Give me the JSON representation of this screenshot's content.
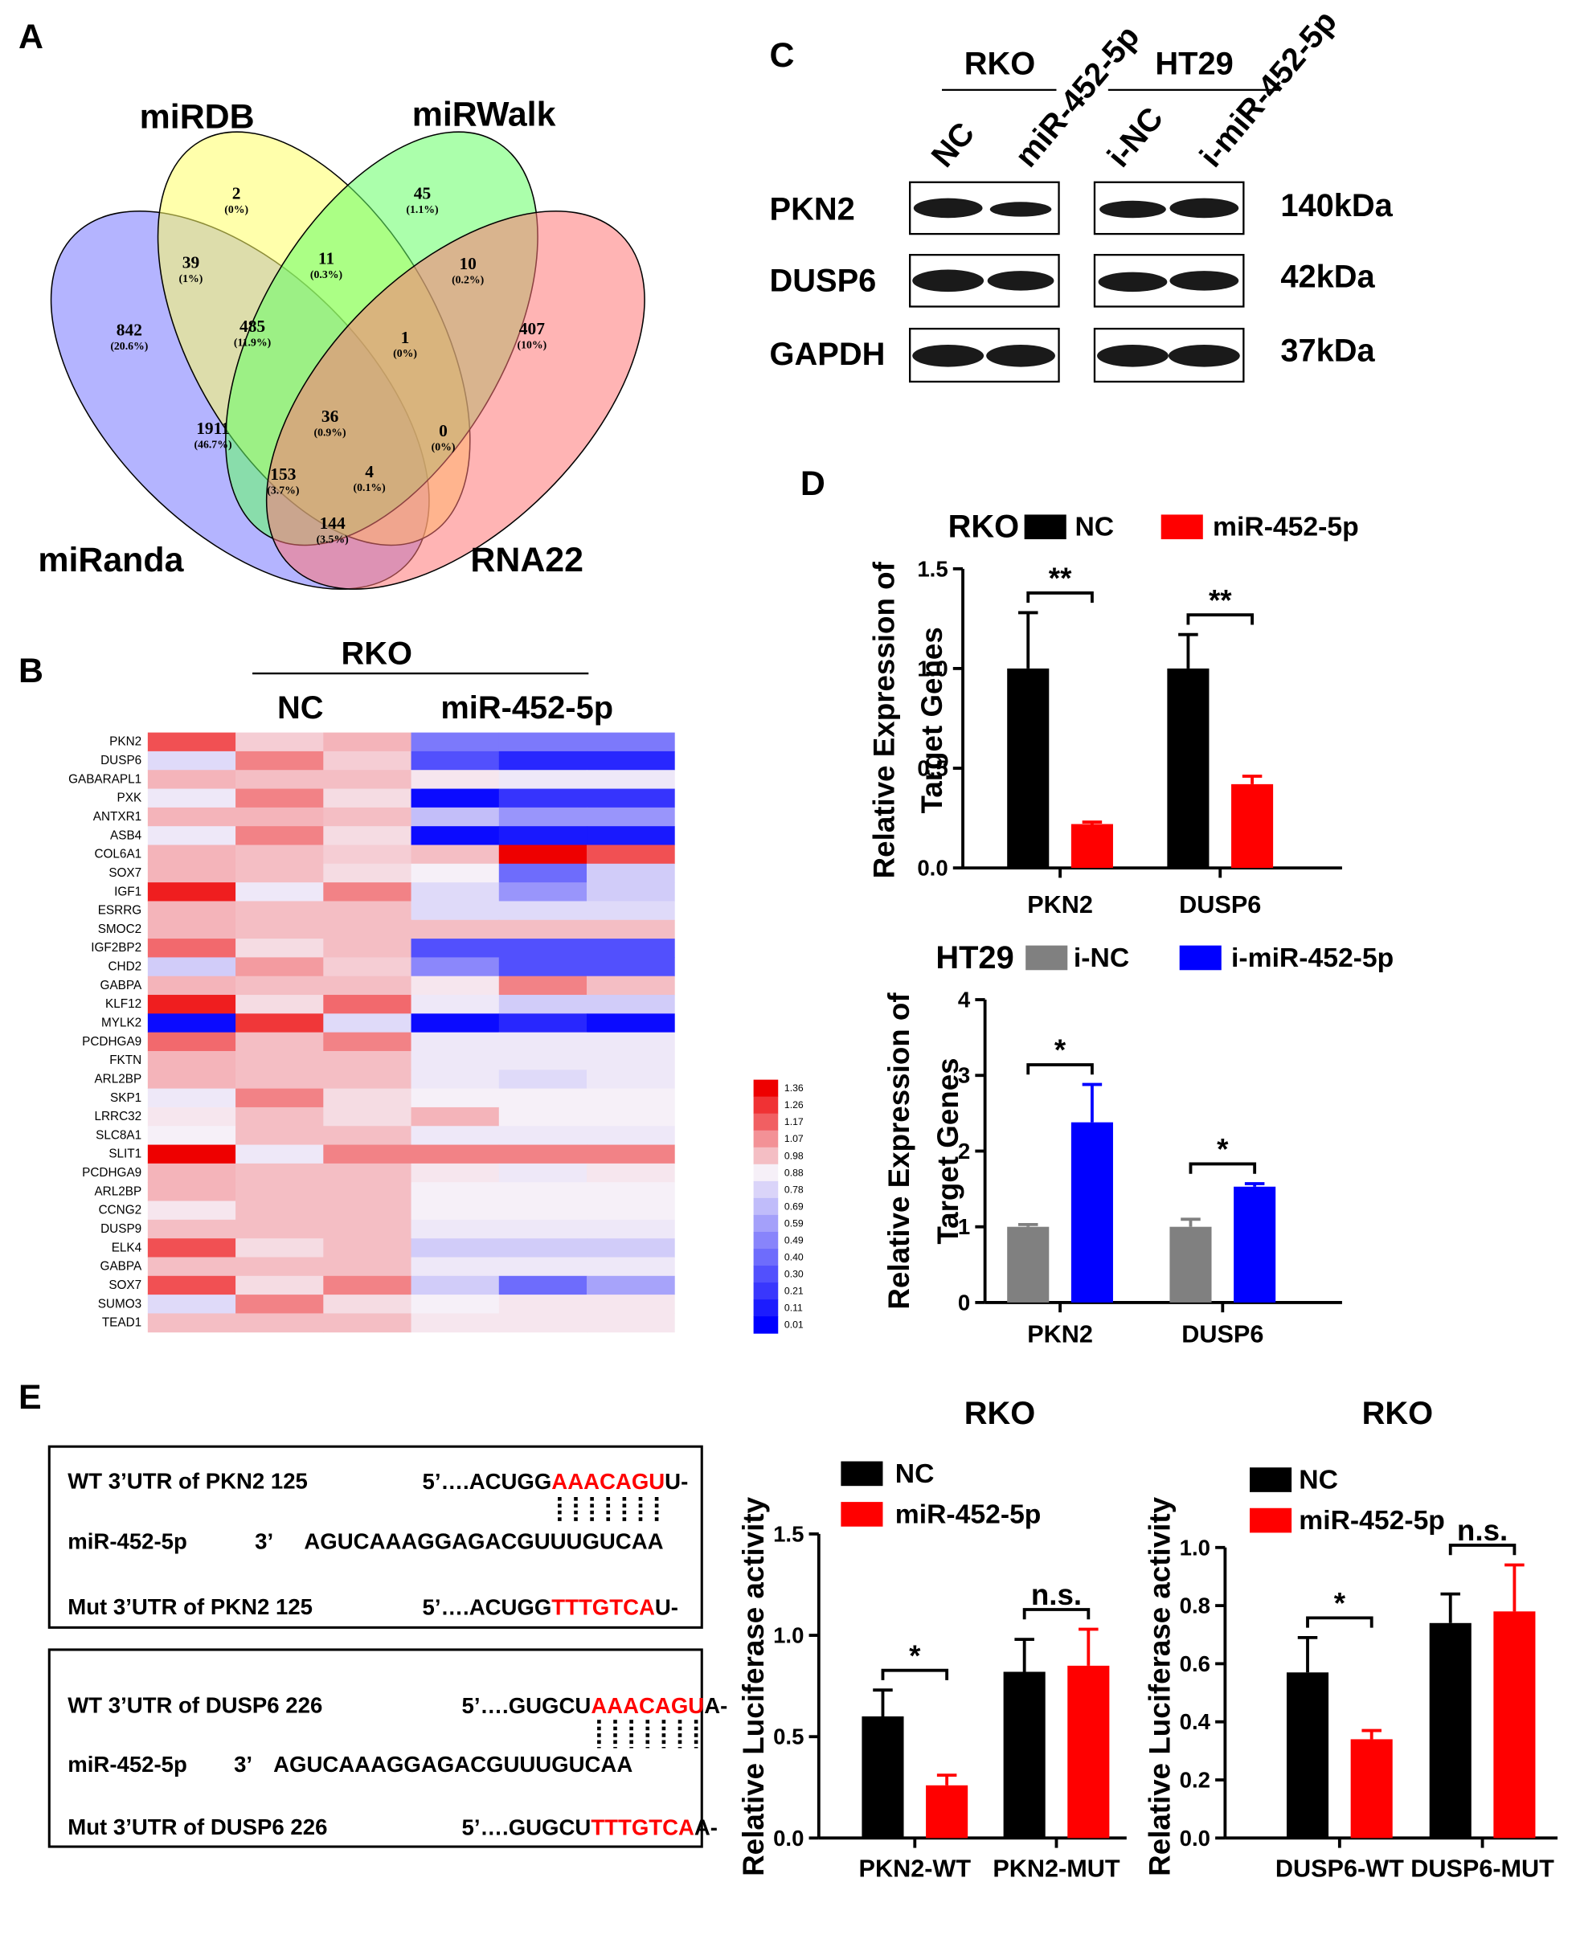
{
  "panel_labels": [
    "A",
    "B",
    "C",
    "D",
    "E"
  ],
  "venn": {
    "sets": [
      "miRDB",
      "miRWalk",
      "miRanda",
      "RNA22"
    ],
    "colors": [
      "#ffff66",
      "#66ff66",
      "#7777ff",
      "#ff7777"
    ],
    "regions": [
      {
        "count": "2",
        "percent": "(0%)"
      },
      {
        "count": "45",
        "percent": "(1.1%)"
      },
      {
        "count": "39",
        "percent": "(1%)"
      },
      {
        "count": "11",
        "percent": "(0.3%)"
      },
      {
        "count": "10",
        "percent": "(0.2%)"
      },
      {
        "count": "842",
        "percent": "(20.6%)"
      },
      {
        "count": "485",
        "percent": "(11.9%)"
      },
      {
        "count": "1",
        "percent": "(0%)"
      },
      {
        "count": "407",
        "percent": "(10%)"
      },
      {
        "count": "36",
        "percent": "(0.9%)"
      },
      {
        "count": "1911",
        "percent": "(46.7%)"
      },
      {
        "count": "0",
        "percent": "(0%)"
      },
      {
        "count": "153",
        "percent": "(3.7%)"
      },
      {
        "count": "4",
        "percent": "(0.1%)"
      },
      {
        "count": "144",
        "percent": "(3.5%)"
      }
    ]
  },
  "heatmap": {
    "group": "RKO",
    "column_groups": [
      "NC",
      "miR-452-5p"
    ],
    "genes": [
      "PKN2",
      "DUSP6",
      "GABARAPL1",
      "PXK",
      "ANTXR1",
      "ASB4",
      "COL6A1",
      "SOX7",
      "IGF1",
      "ESRRG",
      "SMOC2",
      "IGF2BP2",
      "CHD2",
      "GABPA",
      "KLF12",
      "MYLK2",
      "PCDHGA9",
      "FKTN",
      "ARL2BP",
      "SKP1",
      "LRRC32",
      "SLC8A1",
      "SLIT1",
      "PCDHGA9",
      "ARL2BP",
      "CCNG2",
      "DUSP9",
      "ELK4",
      "GABPA",
      "SOX7",
      "SUMO3",
      "TEAD1"
    ],
    "values": [
      [
        1.2,
        0.95,
        1.0,
        0.45,
        0.45,
        0.45
      ],
      [
        0.8,
        1.1,
        0.95,
        0.3,
        0.15,
        0.15
      ],
      [
        1.0,
        0.98,
        0.98,
        0.9,
        0.85,
        0.85
      ],
      [
        0.85,
        1.1,
        0.92,
        0.05,
        0.2,
        0.2
      ],
      [
        1.0,
        1.0,
        0.98,
        0.7,
        0.55,
        0.55
      ],
      [
        0.85,
        1.1,
        0.92,
        0.05,
        0.1,
        0.1
      ],
      [
        1.0,
        0.98,
        0.95,
        0.98,
        1.36,
        1.2
      ],
      [
        1.0,
        0.98,
        0.92,
        0.88,
        0.4,
        0.75
      ],
      [
        1.3,
        0.85,
        1.1,
        0.8,
        0.55,
        0.75
      ],
      [
        1.0,
        0.98,
        0.98,
        0.8,
        0.8,
        0.8
      ],
      [
        1.0,
        0.98,
        0.98,
        0.98,
        0.98,
        0.98
      ],
      [
        1.15,
        0.92,
        0.98,
        0.3,
        0.3,
        0.3
      ],
      [
        0.75,
        1.05,
        0.95,
        0.5,
        0.3,
        0.3
      ],
      [
        1.0,
        0.98,
        0.98,
        0.9,
        1.1,
        0.98
      ],
      [
        1.3,
        0.92,
        1.15,
        0.85,
        0.75,
        0.75
      ],
      [
        0.05,
        1.25,
        0.8,
        0.05,
        0.15,
        0.05
      ],
      [
        1.15,
        0.98,
        1.1,
        0.85,
        0.85,
        0.85
      ],
      [
        1.0,
        0.98,
        0.98,
        0.85,
        0.85,
        0.85
      ],
      [
        1.0,
        0.98,
        0.98,
        0.85,
        0.8,
        0.85
      ],
      [
        0.85,
        1.1,
        0.92,
        0.88,
        0.88,
        0.88
      ],
      [
        0.9,
        0.98,
        0.92,
        1.0,
        0.88,
        0.88
      ],
      [
        0.88,
        0.98,
        0.98,
        0.85,
        0.85,
        0.85
      ],
      [
        1.36,
        0.85,
        1.1,
        1.1,
        1.1,
        1.1
      ],
      [
        1.0,
        0.98,
        0.98,
        0.9,
        0.85,
        0.9
      ],
      [
        1.0,
        0.98,
        0.98,
        0.88,
        0.88,
        0.88
      ],
      [
        0.9,
        0.98,
        0.98,
        0.88,
        0.88,
        0.88
      ],
      [
        0.98,
        0.98,
        0.98,
        0.85,
        0.85,
        0.85
      ],
      [
        1.2,
        0.92,
        0.98,
        0.75,
        0.75,
        0.75
      ],
      [
        0.98,
        0.98,
        0.98,
        0.85,
        0.85,
        0.85
      ],
      [
        1.2,
        0.92,
        1.1,
        0.75,
        0.4,
        0.6
      ],
      [
        0.8,
        1.1,
        0.92,
        0.88,
        0.9,
        0.9
      ],
      [
        0.98,
        0.98,
        0.98,
        0.9,
        0.9,
        0.9
      ]
    ],
    "colorbar_ticks": [
      1.36,
      1.26,
      1.17,
      1.07,
      0.98,
      0.88,
      0.78,
      0.69,
      0.59,
      0.49,
      {
        "value": 0.4,
        "label": "0.40"
      },
      {
        "value": 0.3,
        "label": "0.30"
      },
      0.21,
      0.11,
      0.01
    ],
    "colors": [
      "#0000ff",
      "#f6f0f8",
      "#ee0000"
    ]
  },
  "blot": {
    "cell_lines": [
      "RKO",
      "HT29"
    ],
    "lanes": [
      "NC",
      "miR-452-5p",
      "i-NC",
      "i-miR-452-5p"
    ],
    "proteins": [
      "PKN2",
      "DUSP6",
      "GAPDH"
    ],
    "sizes": [
      "140kDa",
      "42kDa",
      "37kDa"
    ]
  },
  "sequences": [
    {
      "wt": {
        "label": "WT 3’UTR of PKN2  125",
        "prefix": "5’….ACUGG",
        "site": "AAACAGU",
        "suffix": "U-"
      },
      "mirna": {
        "label": "miR-452-5p",
        "end": "3’",
        "seq": "AGUCAAAGGAGACGUUUGUCAA"
      },
      "mut": {
        "label": "Mut 3’UTR of PKN2 125",
        "prefix": "5’….ACUGG",
        "site": "TTTGTCA",
        "suffix": "U-"
      }
    },
    {
      "wt": {
        "label": "WT 3’UTR of DUSP6 226",
        "prefix": "5’….GUGCU",
        "site": "AAACAGU",
        "suffix": "A-"
      },
      "mirna": {
        "label": "miR-452-5p",
        "end": "3’",
        "seq": "AGUCAAAGGAGACGUUUGUCAA"
      },
      "mut": {
        "label": "Mut 3’UTR of DUSP6 226",
        "prefix": "5’….GUGCU",
        "site": "TTTGTCA",
        "suffix": "A-"
      }
    }
  ],
  "chart_data": [
    {
      "type": "bar",
      "title": "RKO",
      "y_label": [
        "Relative Expression of",
        "Target Genes"
      ],
      "categories": [
        "PKN2",
        "DUSP6"
      ],
      "series": [
        {
          "name": "NC",
          "color": "#000000",
          "values": [
            1.0,
            1.0
          ],
          "errors": [
            0.28,
            0.17
          ]
        },
        {
          "name": "miR-452-5p",
          "color": "#ff0000",
          "values": [
            0.22,
            0.42
          ],
          "errors": [
            0.01,
            0.04
          ]
        }
      ],
      "ylim": [
        0,
        1.5
      ],
      "yticks": [
        {
          "value": 0,
          "label": "0.0"
        },
        0.5,
        {
          "value": 1,
          "label": "1.0"
        },
        1.5
      ],
      "significance": [
        "**",
        "**"
      ]
    },
    {
      "type": "bar",
      "title": "HT29",
      "y_label": [
        "Relative Expression of",
        "Target Genes"
      ],
      "categories": [
        "PKN2",
        "DUSP6"
      ],
      "series": [
        {
          "name": "i-NC",
          "color": "#808080",
          "values": [
            1.0,
            1.0
          ],
          "errors": [
            0.03,
            0.1
          ]
        },
        {
          "name": "i-miR-452-5p",
          "color": "#0000ff",
          "values": [
            2.38,
            1.53
          ],
          "errors": [
            0.5,
            0.04
          ]
        }
      ],
      "ylim": [
        0,
        4
      ],
      "yticks": [
        0,
        1,
        2,
        3,
        4
      ],
      "significance": [
        "*",
        "*"
      ]
    },
    {
      "type": "bar",
      "title": "RKO",
      "y_label": [
        "Relative Luciferase activity"
      ],
      "categories": [
        "PKN2-WT",
        "PKN2-MUT"
      ],
      "series": [
        {
          "name": "NC",
          "color": "#000000",
          "values": [
            0.6,
            0.82
          ],
          "errors": [
            0.13,
            0.16
          ]
        },
        {
          "name": "miR-452-5p",
          "color": "#ff0000",
          "values": [
            0.26,
            0.85
          ],
          "errors": [
            0.05,
            0.18
          ]
        }
      ],
      "ylim": [
        0,
        1.5
      ],
      "yticks": [
        {
          "value": 0,
          "label": "0.0"
        },
        0.5,
        {
          "value": 1,
          "label": "1.0"
        },
        1.5
      ],
      "significance": [
        "*",
        "n.s."
      ]
    },
    {
      "type": "bar",
      "title": "RKO",
      "y_label": [
        "Relative Luciferase activity"
      ],
      "categories": [
        "DUSP6-WT",
        "DUSP6-MUT"
      ],
      "series": [
        {
          "name": "NC",
          "color": "#000000",
          "values": [
            0.57,
            0.74
          ],
          "errors": [
            0.12,
            0.1
          ]
        },
        {
          "name": "miR-452-5p",
          "color": "#ff0000",
          "values": [
            0.34,
            0.78
          ],
          "errors": [
            0.03,
            0.16
          ]
        }
      ],
      "ylim": [
        0,
        1.0
      ],
      "yticks": [
        {
          "value": 0,
          "label": "0.0"
        },
        0.2,
        0.4,
        0.6,
        0.8,
        {
          "value": 1,
          "label": "1.0"
        }
      ],
      "significance": [
        "*",
        "n.s."
      ]
    }
  ]
}
